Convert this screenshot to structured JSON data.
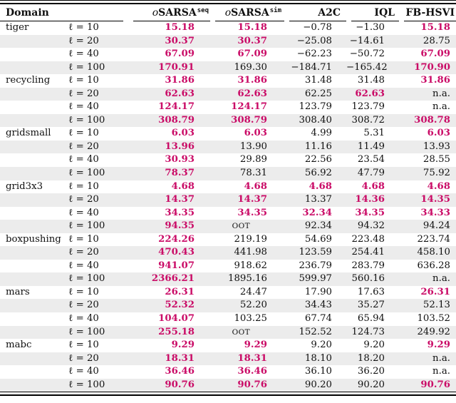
{
  "colors": {
    "accent": "#ca0c67",
    "stripe": "#ececec",
    "rule": "#000000"
  },
  "header": {
    "domain_label": "Domain",
    "columns": [
      {
        "prefix": "o",
        "name": "SARSA",
        "sup": "seq"
      },
      {
        "prefix": "o",
        "name": "SARSA",
        "sup": "sim"
      },
      {
        "name": "A2C"
      },
      {
        "name": "IQL"
      },
      {
        "name": "FB-HSVI"
      }
    ]
  },
  "groups": [
    {
      "domain": "tiger",
      "rows": [
        {
          "horizon": "ℓ = 10",
          "cells": [
            {
              "v": "15.18",
              "best": true
            },
            {
              "v": "15.18",
              "best": true
            },
            {
              "v": "−0.78"
            },
            {
              "v": "−1.30"
            },
            {
              "v": "15.18",
              "best": true
            }
          ]
        },
        {
          "horizon": "ℓ = 20",
          "cells": [
            {
              "v": "30.37",
              "best": true
            },
            {
              "v": "30.37",
              "best": true
            },
            {
              "v": "−25.08"
            },
            {
              "v": "−14.61"
            },
            {
              "v": "28.75"
            }
          ]
        },
        {
          "horizon": "ℓ = 40",
          "cells": [
            {
              "v": "67.09",
              "best": true
            },
            {
              "v": "67.09",
              "best": true
            },
            {
              "v": "−62.23"
            },
            {
              "v": "−50.72"
            },
            {
              "v": "67.09",
              "best": true
            }
          ]
        },
        {
          "horizon": "ℓ = 100",
          "cells": [
            {
              "v": "170.91",
              "best": true
            },
            {
              "v": "169.30"
            },
            {
              "v": "−184.71"
            },
            {
              "v": "−165.42"
            },
            {
              "v": "170.90",
              "best": true
            }
          ]
        }
      ]
    },
    {
      "domain": "recycling",
      "rows": [
        {
          "horizon": "ℓ = 10",
          "cells": [
            {
              "v": "31.86",
              "best": true
            },
            {
              "v": "31.86",
              "best": true
            },
            {
              "v": "31.48"
            },
            {
              "v": "31.48"
            },
            {
              "v": "31.86",
              "best": true
            }
          ]
        },
        {
          "horizon": "ℓ = 20",
          "cells": [
            {
              "v": "62.63",
              "best": true
            },
            {
              "v": "62.63",
              "best": true
            },
            {
              "v": "62.25"
            },
            {
              "v": "62.63",
              "best": true
            },
            {
              "v": "n.a."
            }
          ]
        },
        {
          "horizon": "ℓ = 40",
          "cells": [
            {
              "v": "124.17",
              "best": true
            },
            {
              "v": "124.17",
              "best": true
            },
            {
              "v": "123.79"
            },
            {
              "v": "123.79"
            },
            {
              "v": "n.a."
            }
          ]
        },
        {
          "horizon": "ℓ = 100",
          "cells": [
            {
              "v": "308.79",
              "best": true
            },
            {
              "v": "308.79",
              "best": true
            },
            {
              "v": "308.40"
            },
            {
              "v": "308.72"
            },
            {
              "v": "308.78",
              "best": true
            }
          ]
        }
      ]
    },
    {
      "domain": "gridsmall",
      "rows": [
        {
          "horizon": "ℓ = 10",
          "cells": [
            {
              "v": "6.03",
              "best": true
            },
            {
              "v": "6.03",
              "best": true
            },
            {
              "v": "4.99"
            },
            {
              "v": "5.31"
            },
            {
              "v": "6.03",
              "best": true
            }
          ]
        },
        {
          "horizon": "ℓ = 20",
          "cells": [
            {
              "v": "13.96",
              "best": true
            },
            {
              "v": "13.90"
            },
            {
              "v": "11.16"
            },
            {
              "v": "11.49"
            },
            {
              "v": "13.93"
            }
          ]
        },
        {
          "horizon": "ℓ = 40",
          "cells": [
            {
              "v": "30.93",
              "best": true
            },
            {
              "v": "29.89"
            },
            {
              "v": "22.56"
            },
            {
              "v": "23.54"
            },
            {
              "v": "28.55"
            }
          ]
        },
        {
          "horizon": "ℓ = 100",
          "cells": [
            {
              "v": "78.37",
              "best": true
            },
            {
              "v": "78.31"
            },
            {
              "v": "56.92"
            },
            {
              "v": "47.79"
            },
            {
              "v": "75.92"
            }
          ]
        }
      ]
    },
    {
      "domain": "grid3x3",
      "rows": [
        {
          "horizon": "ℓ = 10",
          "cells": [
            {
              "v": "4.68",
              "best": true
            },
            {
              "v": "4.68",
              "best": true
            },
            {
              "v": "4.68",
              "best": true
            },
            {
              "v": "4.68",
              "best": true
            },
            {
              "v": "4.68",
              "best": true
            }
          ]
        },
        {
          "horizon": "ℓ = 20",
          "cells": [
            {
              "v": "14.37",
              "best": true
            },
            {
              "v": "14.37",
              "best": true
            },
            {
              "v": "13.37"
            },
            {
              "v": "14.36",
              "best": true
            },
            {
              "v": "14.35",
              "best": true
            }
          ]
        },
        {
          "horizon": "ℓ = 40",
          "cells": [
            {
              "v": "34.35",
              "best": true
            },
            {
              "v": "34.35",
              "best": true
            },
            {
              "v": "32.34",
              "best": true
            },
            {
              "v": "34.35",
              "best": true
            },
            {
              "v": "34.33",
              "best": true
            }
          ]
        },
        {
          "horizon": "ℓ = 100",
          "cells": [
            {
              "v": "94.35",
              "best": true
            },
            {
              "v": "OOT",
              "sc": true
            },
            {
              "v": "92.34"
            },
            {
              "v": "94.32"
            },
            {
              "v": "94.24"
            }
          ]
        }
      ]
    },
    {
      "domain": "boxpushing",
      "rows": [
        {
          "horizon": "ℓ = 10",
          "cells": [
            {
              "v": "224.26",
              "best": true
            },
            {
              "v": "219.19"
            },
            {
              "v": "54.69"
            },
            {
              "v": "223.48"
            },
            {
              "v": "223.74"
            }
          ]
        },
        {
          "horizon": "ℓ = 20",
          "cells": [
            {
              "v": "470.43",
              "best": true
            },
            {
              "v": "441.98"
            },
            {
              "v": "123.59"
            },
            {
              "v": "254.41"
            },
            {
              "v": "458.10"
            }
          ]
        },
        {
          "horizon": "ℓ = 40",
          "cells": [
            {
              "v": "941.07",
              "best": true
            },
            {
              "v": "918.62"
            },
            {
              "v": "236.79"
            },
            {
              "v": "283.79"
            },
            {
              "v": "636.28"
            }
          ]
        },
        {
          "horizon": "ℓ = 100",
          "cells": [
            {
              "v": "2366.21",
              "best": true
            },
            {
              "v": "1895.16"
            },
            {
              "v": "599.97"
            },
            {
              "v": "560.16"
            },
            {
              "v": "n.a."
            }
          ]
        }
      ]
    },
    {
      "domain": "mars",
      "rows": [
        {
          "horizon": "ℓ = 10",
          "cells": [
            {
              "v": "26.31",
              "best": true
            },
            {
              "v": "24.47"
            },
            {
              "v": "17.90"
            },
            {
              "v": "17.63"
            },
            {
              "v": "26.31",
              "best": true
            }
          ]
        },
        {
          "horizon": "ℓ = 20",
          "cells": [
            {
              "v": "52.32",
              "best": true
            },
            {
              "v": "52.20"
            },
            {
              "v": "34.43"
            },
            {
              "v": "35.27"
            },
            {
              "v": "52.13"
            }
          ]
        },
        {
          "horizon": "ℓ = 40",
          "cells": [
            {
              "v": "104.07",
              "best": true
            },
            {
              "v": "103.25"
            },
            {
              "v": "67.74"
            },
            {
              "v": "65.94"
            },
            {
              "v": "103.52"
            }
          ]
        },
        {
          "horizon": "ℓ = 100",
          "cells": [
            {
              "v": "255.18",
              "best": true
            },
            {
              "v": "OOT",
              "sc": true
            },
            {
              "v": "152.52"
            },
            {
              "v": "124.73"
            },
            {
              "v": "249.92"
            }
          ]
        }
      ]
    },
    {
      "domain": "mabc",
      "rows": [
        {
          "horizon": "ℓ = 10",
          "cells": [
            {
              "v": "9.29",
              "best": true
            },
            {
              "v": "9.29",
              "best": true
            },
            {
              "v": "9.20"
            },
            {
              "v": "9.20"
            },
            {
              "v": "9.29",
              "best": true
            }
          ]
        },
        {
          "horizon": "ℓ = 20",
          "cells": [
            {
              "v": "18.31",
              "best": true
            },
            {
              "v": "18.31",
              "best": true
            },
            {
              "v": "18.10"
            },
            {
              "v": "18.20"
            },
            {
              "v": "n.a."
            }
          ]
        },
        {
          "horizon": "ℓ = 40",
          "cells": [
            {
              "v": "36.46",
              "best": true
            },
            {
              "v": "36.46",
              "best": true
            },
            {
              "v": "36.10"
            },
            {
              "v": "36.20"
            },
            {
              "v": "n.a."
            }
          ]
        },
        {
          "horizon": "ℓ = 100",
          "cells": [
            {
              "v": "90.76",
              "best": true
            },
            {
              "v": "90.76",
              "best": true
            },
            {
              "v": "90.20"
            },
            {
              "v": "90.20"
            },
            {
              "v": "90.76",
              "best": true
            }
          ]
        }
      ]
    }
  ]
}
